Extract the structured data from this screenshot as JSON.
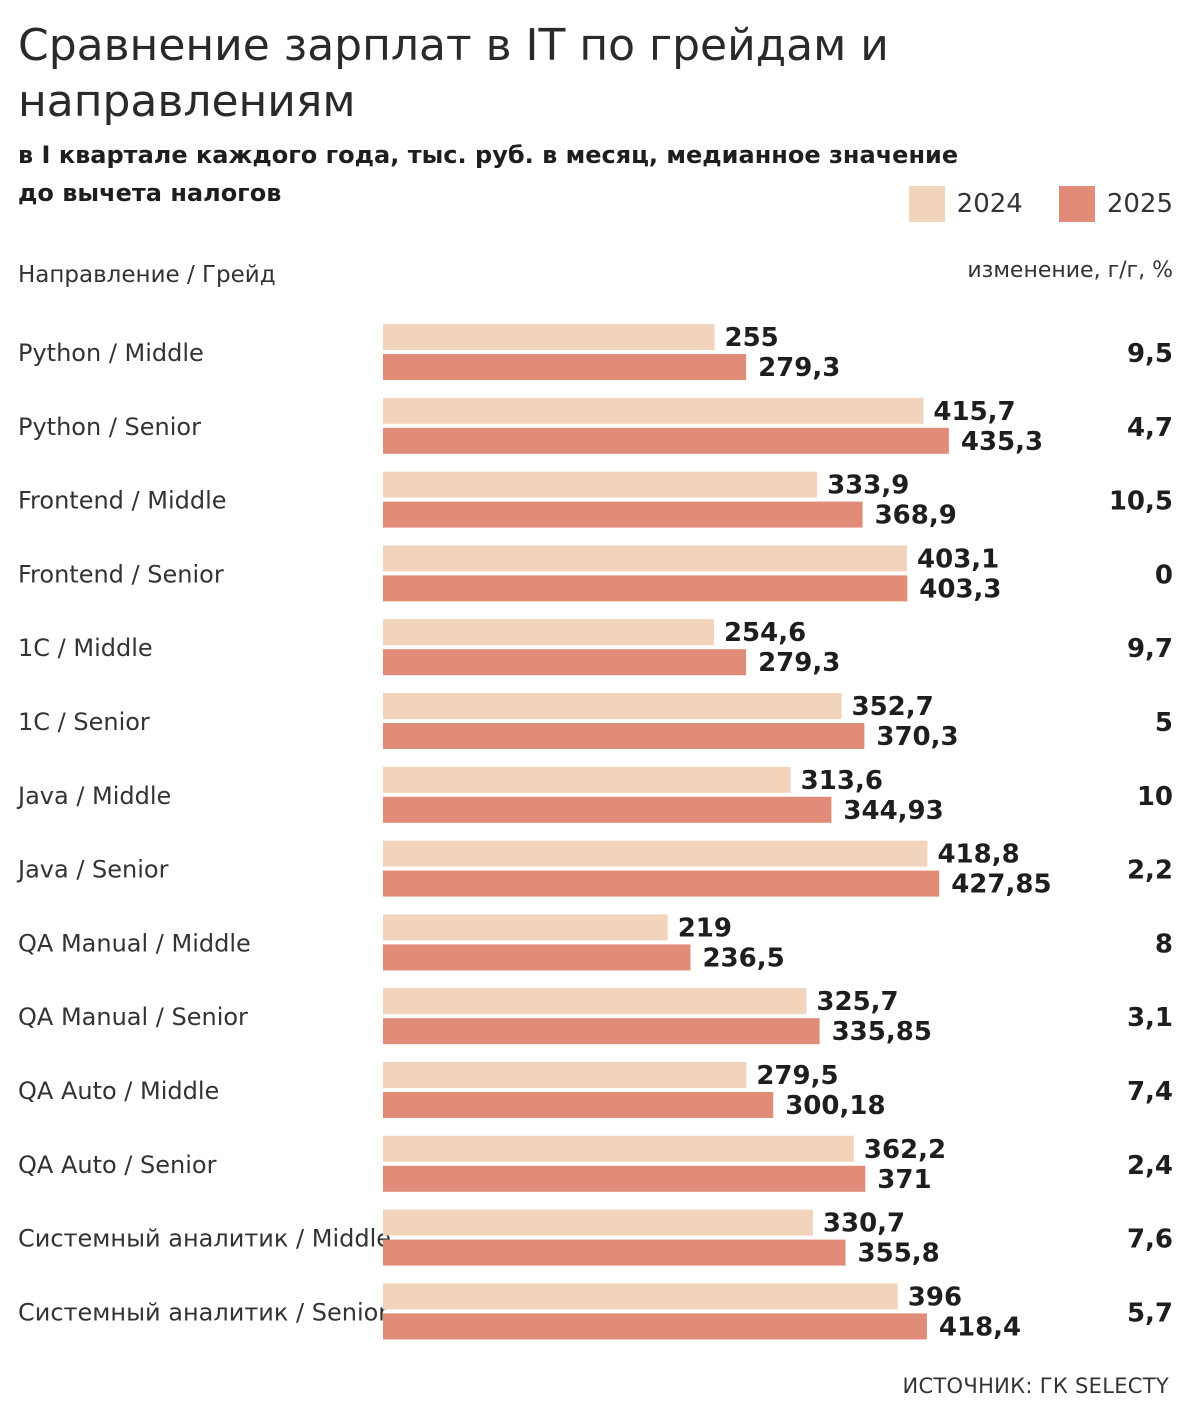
{
  "header": {
    "title": "Сравнение зарплат в IT по грейдам и направлениям",
    "subtitle": "в I квартале каждого года, тыс. руб. в месяц, медианное значение до вычета налогов"
  },
  "legend": [
    {
      "label": "2024",
      "color": "#f2d3bc"
    },
    {
      "label": "2025",
      "color": "#e08c78"
    }
  ],
  "columns": {
    "left_label": "Направление / Грейд",
    "right_label": "изменение, г/г, %"
  },
  "footer": {
    "source": "ИСТОЧНИК: ГК SELECTY"
  },
  "chart_data": {
    "type": "bar",
    "orientation": "horizontal",
    "title": "Сравнение зарплат в IT по грейдам и направлениям",
    "subtitle": "в I квартале каждого года, тыс. руб. в месяц, медианное значение до вычета налогов",
    "categories": [
      "Python / Middle",
      "Python / Senior",
      "Frontend / Middle",
      "Frontend / Senior",
      "1C / Middle",
      "1C / Senior",
      "Java / Middle",
      "Java / Senior",
      "QA Manual / Middle",
      "QA Manual / Senior",
      "QA Auto / Middle",
      "QA Auto / Senior",
      "Системный аналитик / Middle",
      "Системный аналитик / Senior"
    ],
    "series": [
      {
        "name": "2024",
        "color": "#f2d3bc",
        "values": [
          255,
          415.7,
          333.9,
          403.1,
          254.6,
          352.7,
          313.6,
          418.8,
          219,
          325.7,
          279.5,
          362.2,
          330.7,
          396
        ],
        "labels": [
          "255",
          "415,7",
          "333,9",
          "403,1",
          "254,6",
          "352,7",
          "313,6",
          "418,8",
          "219",
          "325,7",
          "279,5",
          "362,2",
          "330,7",
          "396"
        ]
      },
      {
        "name": "2025",
        "color": "#e08c78",
        "values": [
          279.3,
          435.3,
          368.9,
          403.3,
          279.3,
          370.3,
          344.93,
          427.85,
          236.5,
          335.85,
          300.18,
          371,
          355.8,
          418.4
        ],
        "labels": [
          "279,3",
          "435,3",
          "368,9",
          "403,3",
          "279,3",
          "370,3",
          "344,93",
          "427,85",
          "236,5",
          "335,85",
          "300,18",
          "371",
          "355,8",
          "418,4"
        ]
      }
    ],
    "change_pct": [
      "9,5",
      "4,7",
      "10,5",
      "0",
      "9,7",
      "5",
      "10",
      "2,2",
      "8",
      "3,1",
      "7,4",
      "2,4",
      "7,6",
      "5,7"
    ],
    "xlim": [
      0,
      560
    ],
    "grid": false,
    "legend_position": "top-right"
  }
}
